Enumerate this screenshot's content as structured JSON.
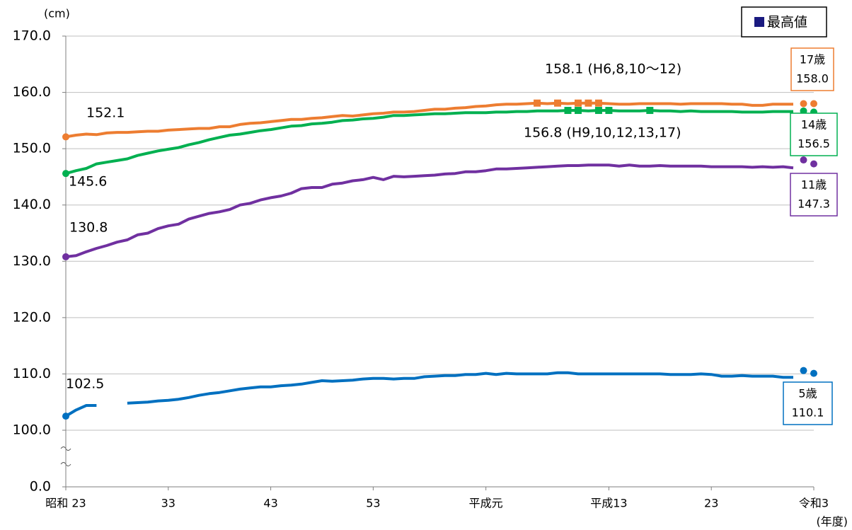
{
  "chart_data": {
    "type": "line",
    "y_unit": "(cm)",
    "x_unit": "(年度)",
    "categories": [
      "昭和 23",
      null,
      null,
      null,
      null,
      null,
      null,
      null,
      null,
      null,
      "33",
      null,
      null,
      null,
      null,
      null,
      null,
      null,
      null,
      null,
      "43",
      null,
      null,
      null,
      null,
      null,
      null,
      null,
      null,
      null,
      "53",
      null,
      null,
      null,
      null,
      null,
      null,
      null,
      null,
      null,
      null,
      "平成元",
      null,
      null,
      null,
      null,
      null,
      null,
      null,
      null,
      null,
      null,
      null,
      "平成13",
      null,
      null,
      null,
      null,
      null,
      null,
      null,
      null,
      null,
      "23",
      null,
      null,
      null,
      null,
      null,
      null,
      null,
      null,
      null,
      "令和3"
    ],
    "ylim": [
      0,
      170
    ],
    "axis_break_below": 100,
    "yticks": [
      {
        "value": 0,
        "label": "0.0"
      },
      {
        "value": 100,
        "label": "100.0"
      },
      {
        "value": 110,
        "label": "110.0"
      },
      {
        "value": 120,
        "label": "120.0"
      },
      {
        "value": 130,
        "label": "130.0"
      },
      {
        "value": 140,
        "label": "140.0"
      },
      {
        "value": 150,
        "label": "150.0"
      },
      {
        "value": 160,
        "label": "160.0"
      },
      {
        "value": 170,
        "label": "170.0"
      }
    ],
    "grid": true,
    "legend": {
      "label": "最高値",
      "color": "#1a1a80",
      "position": "top-right"
    },
    "annotations": [
      {
        "text": "158.1 (H6,8,10～12)",
        "series": 0
      },
      {
        "text": "156.8 (H9,10,12,13,17)",
        "series": 1
      }
    ],
    "series": [
      {
        "name": "17歳",
        "color": "#ed7d31",
        "mark_max": true,
        "values": [
          152.1,
          152.4,
          152.6,
          152.5,
          152.8,
          152.9,
          152.9,
          153.0,
          153.1,
          153.1,
          153.3,
          153.4,
          153.5,
          153.6,
          153.6,
          153.9,
          153.9,
          154.3,
          154.5,
          154.6,
          154.8,
          155.0,
          155.2,
          155.2,
          155.4,
          155.5,
          155.7,
          155.9,
          155.8,
          156.0,
          156.2,
          156.3,
          156.5,
          156.5,
          156.6,
          156.8,
          157.0,
          157.0,
          157.2,
          157.3,
          157.5,
          157.6,
          157.8,
          157.9,
          157.9,
          158.0,
          158.1,
          158.0,
          158.1,
          158.0,
          158.1,
          158.1,
          158.1,
          158.0,
          157.9,
          157.9,
          158.0,
          158.0,
          158.0,
          158.0,
          157.9,
          158.0,
          158.0,
          158.0,
          158.0,
          157.9,
          157.9,
          157.7,
          157.7,
          157.9,
          157.9,
          157.9,
          null,
          null
        ],
        "recent_values": [
          158.0,
          158.0
        ],
        "recent_label": "158.0"
      },
      {
        "name": "14歳",
        "color": "#00b050",
        "mark_max": true,
        "values": [
          145.6,
          146.1,
          146.5,
          147.3,
          147.6,
          147.9,
          148.2,
          148.8,
          149.2,
          149.6,
          149.9,
          150.2,
          150.7,
          151.1,
          151.6,
          152.0,
          152.4,
          152.6,
          152.9,
          153.2,
          153.4,
          153.7,
          154.0,
          154.1,
          154.4,
          154.5,
          154.7,
          155.0,
          155.1,
          155.3,
          155.4,
          155.6,
          155.9,
          155.9,
          156.0,
          156.1,
          156.2,
          156.2,
          156.3,
          156.4,
          156.4,
          156.4,
          156.5,
          156.5,
          156.6,
          156.6,
          156.7,
          156.7,
          156.7,
          156.8,
          156.8,
          156.7,
          156.8,
          156.8,
          156.7,
          156.7,
          156.7,
          156.8,
          156.7,
          156.7,
          156.6,
          156.7,
          156.6,
          156.6,
          156.6,
          156.6,
          156.5,
          156.5,
          156.5,
          156.6,
          156.6,
          156.6,
          null,
          null
        ],
        "recent_values": [
          156.7,
          156.5
        ],
        "recent_label": "156.5"
      },
      {
        "name": "11歳",
        "color": "#7030a0",
        "mark_max": false,
        "values": [
          130.8,
          131.0,
          131.7,
          132.3,
          132.8,
          133.4,
          133.8,
          134.7,
          135.0,
          135.8,
          136.3,
          136.6,
          137.5,
          138.0,
          138.5,
          138.8,
          139.2,
          140.0,
          140.3,
          140.9,
          141.3,
          141.6,
          142.1,
          142.9,
          143.1,
          143.1,
          143.7,
          143.9,
          144.3,
          144.5,
          144.9,
          144.5,
          145.1,
          145.0,
          145.1,
          145.2,
          145.3,
          145.5,
          145.6,
          145.9,
          145.9,
          146.1,
          146.4,
          146.4,
          146.5,
          146.6,
          146.7,
          146.8,
          146.9,
          147.0,
          147.0,
          147.1,
          147.1,
          147.1,
          146.9,
          147.1,
          146.9,
          146.9,
          147.0,
          146.9,
          146.9,
          146.9,
          146.9,
          146.8,
          146.8,
          146.8,
          146.8,
          146.7,
          146.8,
          146.7,
          146.8,
          146.6,
          null,
          null
        ],
        "recent_values": [
          148.0,
          147.3
        ],
        "recent_label": "147.3"
      },
      {
        "name": "5歳",
        "color": "#0070c0",
        "mark_max": false,
        "values": [
          102.5,
          103.6,
          104.4,
          104.4,
          null,
          null,
          104.8,
          104.9,
          105.0,
          105.2,
          105.3,
          105.5,
          105.8,
          106.2,
          106.5,
          106.7,
          107.0,
          107.3,
          107.5,
          107.7,
          107.7,
          107.9,
          108.0,
          108.2,
          108.5,
          108.8,
          108.7,
          108.8,
          108.9,
          109.1,
          109.2,
          109.2,
          109.1,
          109.2,
          109.2,
          109.5,
          109.6,
          109.7,
          109.7,
          109.9,
          109.9,
          110.1,
          109.9,
          110.1,
          110.0,
          110.0,
          110.0,
          110.0,
          110.2,
          110.2,
          110.0,
          110.0,
          110.0,
          110.0,
          110.0,
          110.0,
          110.0,
          110.0,
          110.0,
          109.9,
          109.9,
          109.9,
          110.0,
          109.9,
          109.6,
          109.6,
          109.7,
          109.6,
          109.6,
          109.6,
          109.4,
          109.4,
          null,
          null
        ],
        "recent_values": [
          110.6,
          110.1
        ],
        "recent_label": "110.1"
      }
    ]
  }
}
